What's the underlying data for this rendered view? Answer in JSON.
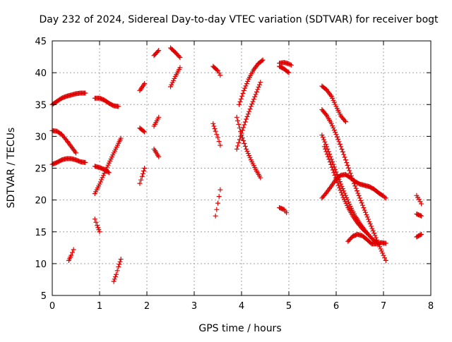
{
  "chart_data": {
    "type": "scatter",
    "title": "Day 232 of 2024, Sidereal Day-to-day VTEC variation (SDTVAR) for receiver bogt",
    "xlabel": "GPS time / hours",
    "ylabel": "SDTVAR / TECUs",
    "xlim": [
      0,
      8
    ],
    "ylim": [
      5,
      45
    ],
    "xticks": [
      "0",
      "1",
      "2",
      "3",
      "4",
      "5",
      "6",
      "7",
      "8"
    ],
    "yticks": [
      "5",
      "10",
      "15",
      "20",
      "25",
      "30",
      "35",
      "40",
      "45"
    ],
    "grid": true,
    "marker": "plus",
    "color": "#e00000",
    "tracks": [
      {
        "x": [
          0.0,
          0.1,
          0.2,
          0.3,
          0.4,
          0.5,
          0.6,
          0.7
        ],
        "y": [
          35.0,
          35.5,
          36.0,
          36.3,
          36.5,
          36.7,
          36.8,
          36.8
        ]
      },
      {
        "x": [
          0.0,
          0.1,
          0.2,
          0.3,
          0.4,
          0.5
        ],
        "y": [
          30.9,
          30.8,
          30.3,
          29.4,
          28.4,
          27.4
        ]
      },
      {
        "x": [
          0.0,
          0.1,
          0.2,
          0.3,
          0.4,
          0.5,
          0.6,
          0.7
        ],
        "y": [
          25.6,
          25.9,
          26.3,
          26.5,
          26.5,
          26.3,
          26.0,
          25.9
        ]
      },
      {
        "x": [
          0.35,
          0.4,
          0.45
        ],
        "y": [
          10.5,
          11.3,
          12.2
        ]
      },
      {
        "x": [
          0.9,
          1.0,
          1.1,
          1.2,
          1.3,
          1.4
        ],
        "y": [
          36.0,
          36.0,
          35.7,
          35.2,
          34.8,
          34.7
        ]
      },
      {
        "x": [
          0.9,
          1.0,
          1.1,
          1.2
        ],
        "y": [
          25.3,
          25.1,
          24.8,
          24.3
        ]
      },
      {
        "x": [
          0.9,
          1.0,
          1.1,
          1.2,
          1.3,
          1.4,
          1.45
        ],
        "y": [
          21.0,
          22.5,
          24.2,
          25.8,
          27.4,
          28.9,
          29.7
        ]
      },
      {
        "x": [
          0.9,
          0.95,
          1.0
        ],
        "y": [
          17.0,
          16.0,
          15.0
        ]
      },
      {
        "x": [
          1.3,
          1.35,
          1.4,
          1.45
        ],
        "y": [
          7.2,
          8.3,
          9.5,
          10.7
        ]
      },
      {
        "x": [
          1.85,
          1.95
        ],
        "y": [
          37.2,
          38.3
        ]
      },
      {
        "x": [
          1.85,
          1.95
        ],
        "y": [
          31.3,
          30.7
        ]
      },
      {
        "x": [
          1.85,
          1.9,
          1.95
        ],
        "y": [
          22.6,
          23.7,
          25.0
        ]
      },
      {
        "x": [
          2.15,
          2.25
        ],
        "y": [
          42.7,
          43.5
        ]
      },
      {
        "x": [
          2.15,
          2.25
        ],
        "y": [
          31.6,
          33.0
        ]
      },
      {
        "x": [
          2.15,
          2.25
        ],
        "y": [
          28.0,
          26.8
        ]
      },
      {
        "x": [
          2.5,
          2.6,
          2.7
        ],
        "y": [
          43.9,
          43.2,
          42.4
        ]
      },
      {
        "x": [
          2.5,
          2.6,
          2.7
        ],
        "y": [
          37.8,
          39.4,
          40.8
        ]
      },
      {
        "x": [
          3.4,
          3.5,
          3.55
        ],
        "y": [
          41.0,
          40.3,
          39.6
        ]
      },
      {
        "x": [
          3.4,
          3.45,
          3.5,
          3.55
        ],
        "y": [
          32.0,
          30.8,
          29.8,
          28.6
        ]
      },
      {
        "x": [
          3.45,
          3.5,
          3.55
        ],
        "y": [
          17.5,
          19.5,
          21.6
        ]
      },
      {
        "x": [
          3.9,
          4.0,
          4.1,
          4.2,
          4.3,
          4.4
        ],
        "y": [
          33.0,
          30.2,
          28.0,
          26.3,
          24.8,
          23.5
        ]
      },
      {
        "x": [
          3.9,
          4.0,
          4.1,
          4.2,
          4.3,
          4.4
        ],
        "y": [
          28.0,
          30.5,
          32.7,
          34.7,
          36.6,
          38.5
        ]
      },
      {
        "x": [
          3.95,
          4.05,
          4.15,
          4.25,
          4.35,
          4.45
        ],
        "y": [
          35.0,
          37.2,
          39.0,
          40.4,
          41.4,
          42.0
        ]
      },
      {
        "x": [
          4.8,
          4.9,
          5.0,
          5.05
        ],
        "y": [
          41.5,
          41.6,
          41.4,
          41.2
        ]
      },
      {
        "x": [
          4.8,
          4.9,
          5.0
        ],
        "y": [
          41.0,
          40.6,
          40.0
        ]
      },
      {
        "x": [
          4.8,
          4.9,
          4.95
        ],
        "y": [
          18.8,
          18.5,
          18.0
        ]
      },
      {
        "x": [
          5.7,
          5.8,
          5.9,
          6.0,
          6.1,
          6.2
        ],
        "y": [
          37.9,
          37.3,
          36.3,
          34.7,
          33.2,
          32.3
        ]
      },
      {
        "x": [
          5.7,
          5.8,
          5.9,
          6.0,
          6.1,
          6.2,
          6.3,
          6.4,
          6.5,
          6.6,
          6.7,
          6.8,
          6.9,
          7.0,
          7.05
        ],
        "y": [
          34.2,
          33.3,
          32.0,
          30.3,
          28.4,
          26.3,
          24.2,
          22.2,
          20.3,
          18.4,
          16.6,
          14.8,
          13.0,
          11.3,
          10.5
        ]
      },
      {
        "x": [
          5.7,
          5.8,
          5.9,
          6.0,
          6.1,
          6.2,
          6.3,
          6.4,
          6.5,
          6.6,
          6.7,
          6.8,
          6.9
        ],
        "y": [
          30.2,
          28.4,
          26.4,
          24.4,
          22.5,
          20.7,
          19.0,
          17.5,
          16.3,
          15.3,
          14.4,
          13.6,
          13.2
        ]
      },
      {
        "x": [
          5.75,
          5.85,
          5.95,
          6.05,
          6.15,
          6.25,
          6.35,
          6.45,
          6.55,
          6.65
        ],
        "y": [
          28.4,
          26.4,
          24.3,
          22.3,
          20.4,
          18.8,
          17.5,
          16.4,
          15.5,
          14.8
        ]
      },
      {
        "x": [
          5.7,
          5.8,
          5.9,
          6.0,
          6.1,
          6.2,
          6.3,
          6.4,
          6.5,
          6.6,
          6.7,
          6.8,
          6.9,
          7.0,
          7.05
        ],
        "y": [
          20.3,
          21.2,
          22.2,
          23.3,
          23.9,
          24.0,
          23.5,
          22.9,
          22.5,
          22.3,
          22.1,
          21.7,
          21.1,
          20.6,
          20.3
        ]
      },
      {
        "x": [
          6.25,
          6.35,
          6.45,
          6.55,
          6.65,
          6.75,
          6.85,
          6.95,
          7.05
        ],
        "y": [
          13.5,
          14.3,
          14.6,
          14.4,
          13.8,
          13.1,
          13.1,
          13.3,
          13.2
        ]
      },
      {
        "x": [
          7.7,
          7.75,
          7.8
        ],
        "y": [
          20.7,
          20.1,
          19.4
        ]
      },
      {
        "x": [
          7.7,
          7.8
        ],
        "y": [
          17.8,
          17.5
        ]
      },
      {
        "x": [
          7.7,
          7.8
        ],
        "y": [
          14.2,
          14.6
        ]
      }
    ]
  }
}
